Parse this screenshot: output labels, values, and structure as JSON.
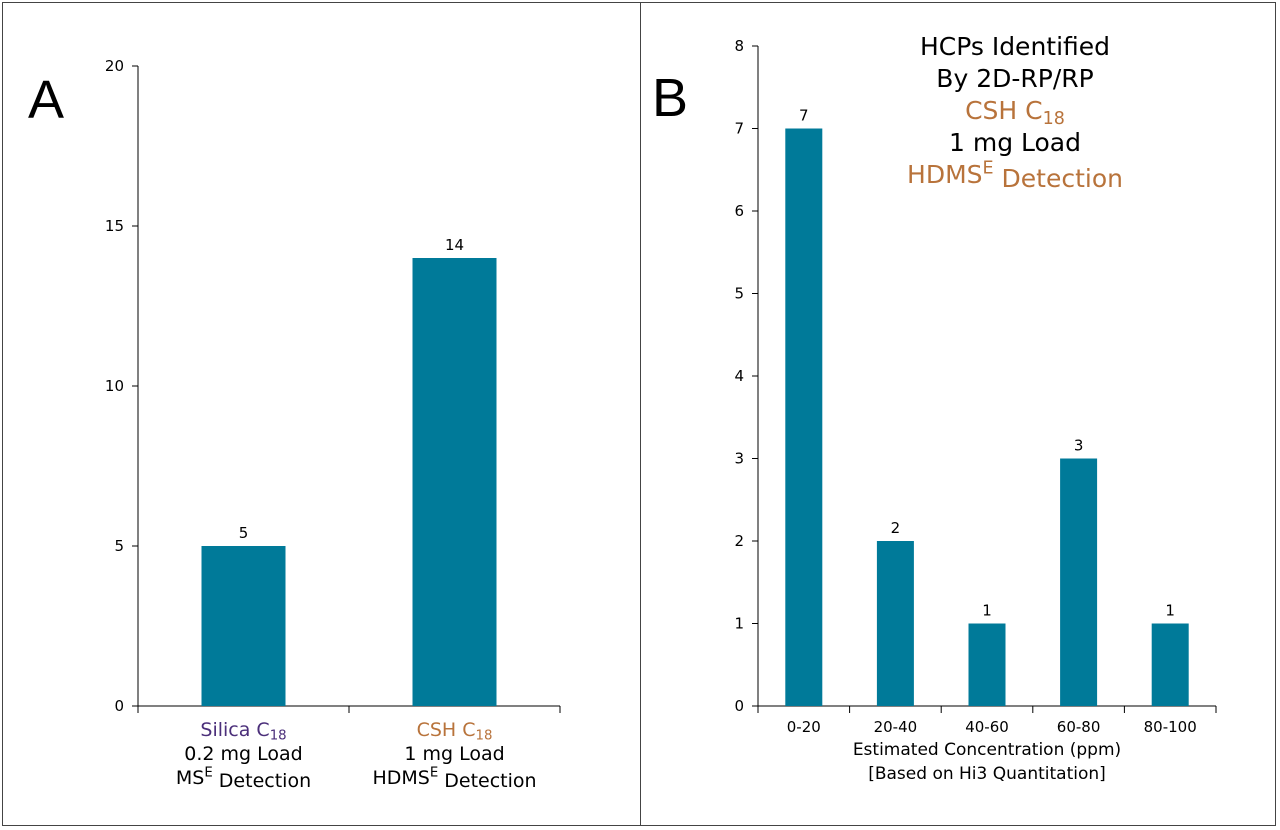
{
  "colors": {
    "bar": "#007a99",
    "purple": "#4b2f7a",
    "orange": "#b8733b",
    "black": "#000000"
  },
  "chart_data": [
    {
      "type": "bar",
      "panel_label": "A",
      "categories": [
        "Silica C18",
        "CSH C18"
      ],
      "category_lines": [
        [
          {
            "parts": [
              {
                "text": "Silica C",
                "style": "normal"
              },
              {
                "text": "18",
                "style": "sub"
              }
            ],
            "color": "purple"
          },
          {
            "parts": [
              {
                "text": "0.2 mg Load",
                "style": "normal"
              }
            ],
            "color": "black"
          },
          {
            "parts": [
              {
                "text": "MS",
                "style": "normal"
              },
              {
                "text": "E",
                "style": "sup"
              },
              {
                "text": " Detection",
                "style": "normal"
              }
            ],
            "color": "black"
          }
        ],
        [
          {
            "parts": [
              {
                "text": "CSH C",
                "style": "normal"
              },
              {
                "text": "18",
                "style": "sub"
              }
            ],
            "color": "orange"
          },
          {
            "parts": [
              {
                "text": "1 mg Load",
                "style": "normal"
              }
            ],
            "color": "black"
          },
          {
            "parts": [
              {
                "text": "HDMS",
                "style": "normal"
              },
              {
                "text": "E",
                "style": "sup"
              },
              {
                "text": " Detection",
                "style": "normal"
              }
            ],
            "color": "black"
          }
        ]
      ],
      "values": [
        5,
        14
      ],
      "data_labels": [
        "5",
        "14"
      ],
      "ylim": [
        0,
        20
      ],
      "yticks": [
        0,
        5,
        10,
        15,
        20
      ],
      "title": "",
      "xlabel": "",
      "ylabel": "",
      "grid": false,
      "legend": "none"
    },
    {
      "type": "bar",
      "panel_label": "B",
      "categories": [
        "0-20",
        "20-40",
        "40-60",
        "60-80",
        "80-100"
      ],
      "values": [
        7,
        2,
        1,
        3,
        1
      ],
      "data_labels": [
        "7",
        "2",
        "1",
        "3",
        "1"
      ],
      "ylim": [
        0,
        8
      ],
      "yticks": [
        0,
        1,
        2,
        3,
        4,
        5,
        6,
        7,
        8
      ],
      "title_lines": [
        {
          "parts": [
            {
              "text": "HCPs Identified",
              "style": "normal"
            }
          ],
          "color": "black"
        },
        {
          "parts": [
            {
              "text": "By 2D-RP/RP",
              "style": "normal"
            }
          ],
          "color": "black"
        },
        {
          "parts": [
            {
              "text": "CSH C",
              "style": "normal"
            },
            {
              "text": "18",
              "style": "sub"
            }
          ],
          "color": "orange"
        },
        {
          "parts": [
            {
              "text": "1 mg Load",
              "style": "normal"
            }
          ],
          "color": "black"
        },
        {
          "parts": [
            {
              "text": "HDMS",
              "style": "normal"
            },
            {
              "text": "E",
              "style": "sup"
            },
            {
              "text": " Detection",
              "style": "normal"
            }
          ],
          "color": "orange"
        }
      ],
      "xlabel_lines": [
        "Estimated Concentration (ppm)",
        "[Based on Hi3 Quantitation]"
      ],
      "ylabel": "",
      "grid": false,
      "legend": "none"
    }
  ]
}
